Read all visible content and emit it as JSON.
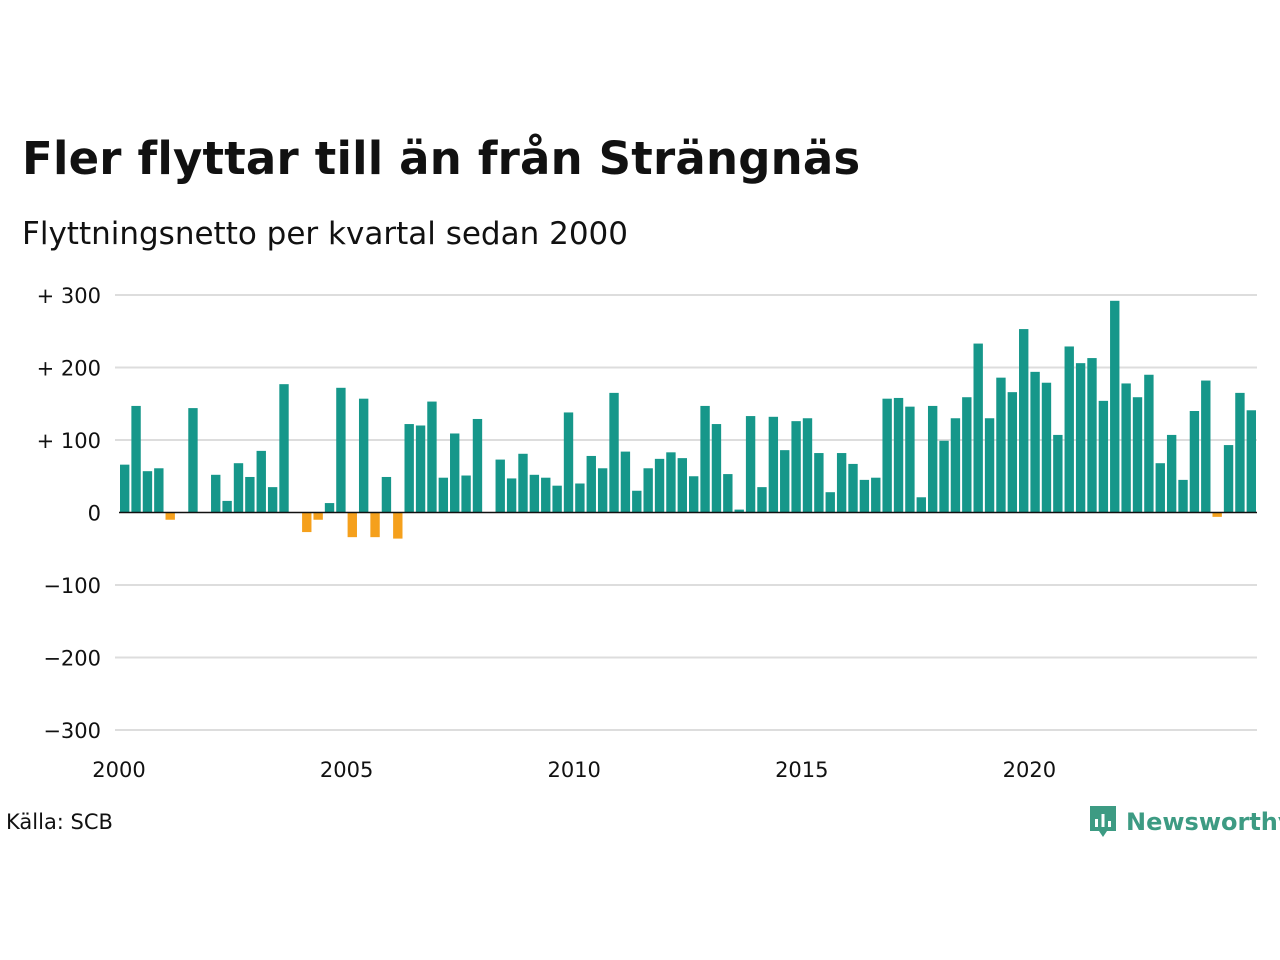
{
  "header": {
    "title": "Fler flyttar till än från Strängnäs",
    "subtitle": "Flyttningsnetto per kvartal sedan 2000"
  },
  "footer": {
    "source": "Källa: SCB",
    "brand": "Newsworthy",
    "brand_icon": "newsworthy-logo-icon"
  },
  "colors": {
    "positive": "#16978a",
    "negative": "#f5a01c",
    "brand": "#3d9b83",
    "grid": "#dddddd",
    "zero_line": "#111111"
  },
  "chart_data": {
    "type": "bar",
    "title": "Fler flyttar till än från Strängnäs",
    "subtitle": "Flyttningsnetto per kvartal sedan 2000",
    "xlabel": "",
    "ylabel": "",
    "ylim": [
      -300,
      300
    ],
    "yticks": [
      300,
      200,
      100,
      0,
      -100,
      -200,
      -300
    ],
    "ytick_labels": [
      "+ 300",
      "+ 200",
      "+ 100",
      "0",
      "−100",
      "−200",
      "−300"
    ],
    "x_start_year": 2000,
    "quarters_per_year": 4,
    "xticks": [
      "2000",
      "2005",
      "2010",
      "2015",
      "2020"
    ],
    "grid": true,
    "legend": "none",
    "values": [
      66,
      147,
      57,
      61,
      -10,
      0,
      144,
      0,
      52,
      16,
      68,
      49,
      85,
      35,
      177,
      0,
      -27,
      -10,
      13,
      172,
      -34,
      157,
      -34,
      49,
      -36,
      122,
      120,
      153,
      48,
      109,
      51,
      129,
      0,
      73,
      47,
      81,
      52,
      48,
      37,
      138,
      40,
      78,
      61,
      165,
      84,
      30,
      61,
      74,
      83,
      75,
      50,
      147,
      122,
      53,
      4,
      133,
      35,
      132,
      86,
      126,
      130,
      82,
      28,
      82,
      67,
      45,
      48,
      157,
      158,
      146,
      21,
      147,
      99,
      130,
      159,
      233,
      130,
      186,
      166,
      253,
      194,
      179,
      107,
      229,
      206,
      213,
      154,
      292,
      178,
      159,
      190,
      68,
      107,
      45,
      140,
      182,
      -6,
      93,
      165,
      141
    ]
  }
}
